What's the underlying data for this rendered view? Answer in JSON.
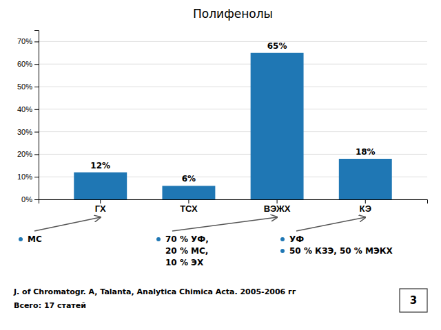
{
  "chart_data": {
    "type": "bar",
    "title": "Полифенолы",
    "categories": [
      "ГХ",
      "ТСХ",
      "ВЭЖХ",
      "КЭ"
    ],
    "values": [
      12,
      6,
      65,
      18
    ],
    "value_labels": [
      "12%",
      "6%",
      "65%",
      "18%"
    ],
    "data_labels": true,
    "ylim": [
      0,
      75
    ],
    "yticks": [
      {
        "value": 0,
        "label": "0%"
      },
      {
        "value": 10,
        "label": "10%"
      },
      {
        "value": 20,
        "label": "20%"
      },
      {
        "value": 30,
        "label": "30%"
      },
      {
        "value": 40,
        "label": "40%"
      },
      {
        "value": 50,
        "label": "50%"
      },
      {
        "value": 60,
        "label": "60%"
      },
      {
        "value": 70,
        "label": "70%"
      }
    ],
    "grid": true,
    "annotations": [
      "МС",
      "70 % УФ,",
      "20 % МС,",
      "10 % ЭХ",
      "УФ",
      "50 % КЗЭ, 50 % МЭКХ",
      "J. of Chromatogr. A, Talanta, Analytica Chimica Acta. 2005-2006 гг",
      "Всего: 17 статей",
      "3"
    ]
  }
}
